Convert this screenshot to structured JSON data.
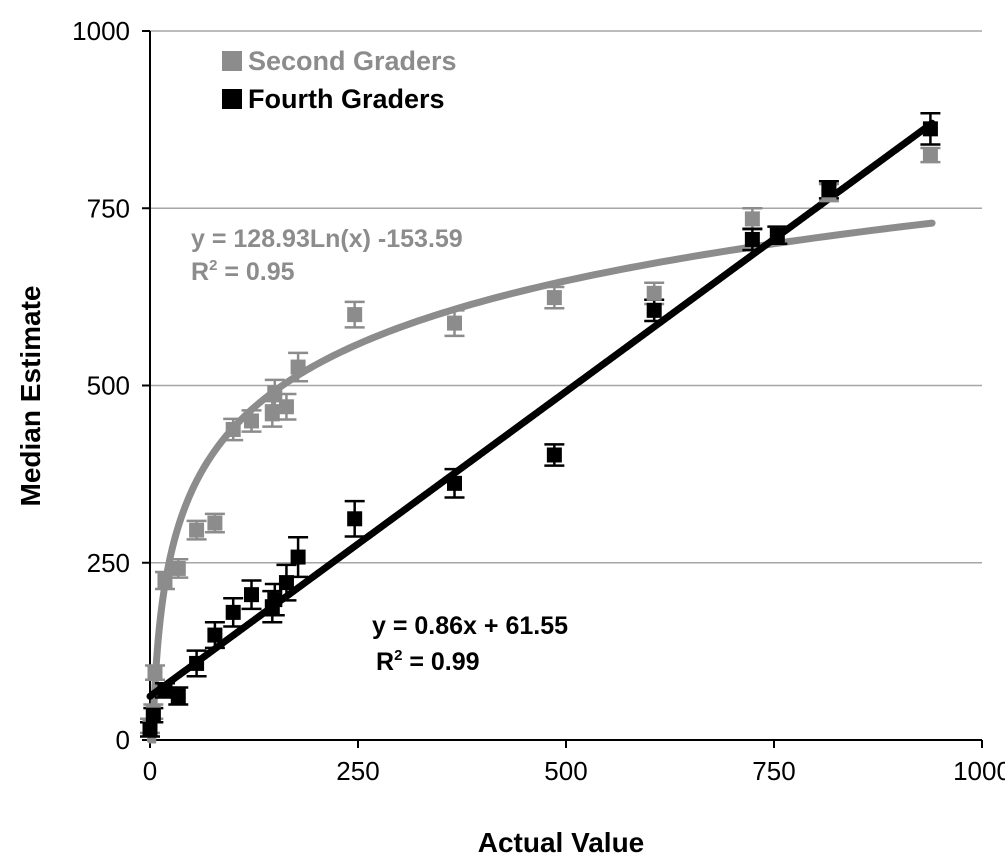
{
  "chart_data": {
    "type": "scatter",
    "xlabel": "Actual Value",
    "ylabel": "Median Estimate",
    "xlim": [
      0,
      1000
    ],
    "ylim": [
      0,
      1000
    ],
    "x_ticks": [
      "0",
      "250",
      "500",
      "750",
      "1000"
    ],
    "y_ticks": [
      "0",
      "250",
      "500",
      "750",
      "1000"
    ],
    "grid": "horizontal",
    "legend_position": "top-left",
    "series": [
      {
        "name": "Second Graders",
        "color": "#8c8c8c",
        "points": [
          {
            "x": 0,
            "y": 20,
            "err": 10
          },
          {
            "x": 4,
            "y": 40,
            "err": 10
          },
          {
            "x": 6,
            "y": 95,
            "err": 10
          },
          {
            "x": 18,
            "y": 225,
            "err": 12
          },
          {
            "x": 34,
            "y": 242,
            "err": 13
          },
          {
            "x": 56,
            "y": 296,
            "err": 13
          },
          {
            "x": 78,
            "y": 306,
            "err": 13
          },
          {
            "x": 100,
            "y": 438,
            "err": 15
          },
          {
            "x": 122,
            "y": 450,
            "err": 15
          },
          {
            "x": 147,
            "y": 460,
            "err": 18
          },
          {
            "x": 150,
            "y": 490,
            "err": 18
          },
          {
            "x": 164,
            "y": 470,
            "err": 18
          },
          {
            "x": 178,
            "y": 526,
            "err": 20
          },
          {
            "x": 246,
            "y": 600,
            "err": 18
          },
          {
            "x": 366,
            "y": 588,
            "err": 18
          },
          {
            "x": 486,
            "y": 624,
            "err": 15
          },
          {
            "x": 606,
            "y": 630,
            "err": 15
          },
          {
            "x": 724,
            "y": 735,
            "err": 15
          },
          {
            "x": 816,
            "y": 772,
            "err": 12
          },
          {
            "x": 938,
            "y": 825,
            "err": 10
          }
        ],
        "trendline": {
          "type": "log",
          "a": 128.93,
          "b": -153.59,
          "x_from": 0.3,
          "x_to": 940,
          "equation": "y = 128.93Ln(x) -153.59",
          "r2_label": "R",
          "r2_value": "= 0.95"
        }
      },
      {
        "name": "Fourth Graders",
        "color": "#000000",
        "points": [
          {
            "x": 0,
            "y": 15,
            "err": 10
          },
          {
            "x": 4,
            "y": 35,
            "err": 10
          },
          {
            "x": 18,
            "y": 70,
            "err": 10
          },
          {
            "x": 34,
            "y": 62,
            "err": 12
          },
          {
            "x": 56,
            "y": 108,
            "err": 18
          },
          {
            "x": 78,
            "y": 148,
            "err": 18
          },
          {
            "x": 100,
            "y": 180,
            "err": 20
          },
          {
            "x": 122,
            "y": 205,
            "err": 20
          },
          {
            "x": 147,
            "y": 188,
            "err": 22
          },
          {
            "x": 150,
            "y": 198,
            "err": 22
          },
          {
            "x": 164,
            "y": 222,
            "err": 25
          },
          {
            "x": 178,
            "y": 258,
            "err": 28
          },
          {
            "x": 246,
            "y": 312,
            "err": 25
          },
          {
            "x": 366,
            "y": 362,
            "err": 20
          },
          {
            "x": 486,
            "y": 402,
            "err": 15
          },
          {
            "x": 606,
            "y": 606,
            "err": 15
          },
          {
            "x": 724,
            "y": 706,
            "err": 15
          },
          {
            "x": 754,
            "y": 712,
            "err": 12
          },
          {
            "x": 816,
            "y": 776,
            "err": 12
          },
          {
            "x": 938,
            "y": 862,
            "err": 22
          }
        ],
        "trendline": {
          "type": "linear",
          "m": 0.86,
          "c": 61.55,
          "x_from": 0,
          "x_to": 940,
          "equation": "y = 0.86x + 61.55",
          "r2_label": "R",
          "r2_value": "= 0.99"
        }
      }
    ]
  }
}
